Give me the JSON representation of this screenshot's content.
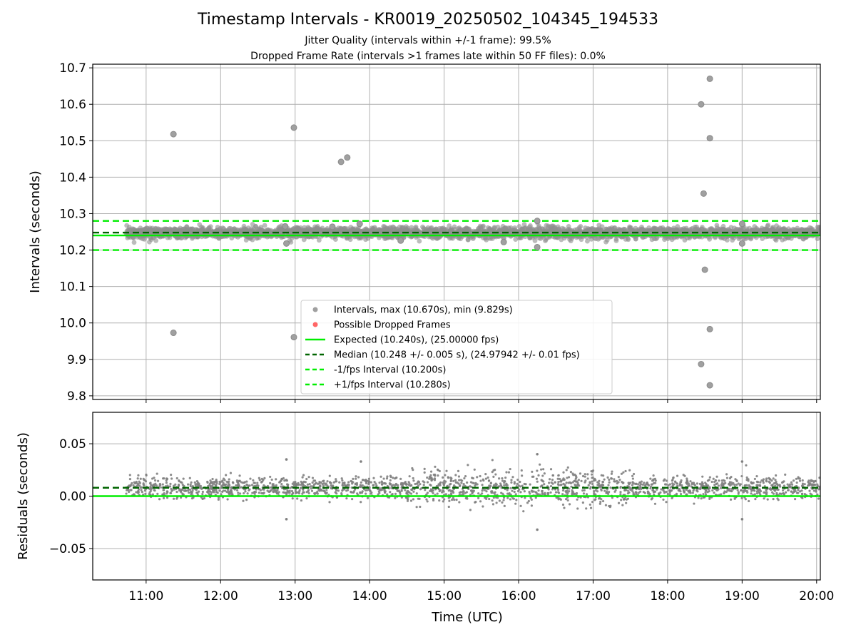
{
  "title": "Timestamp Intervals - KR0019_20250502_104345_194533",
  "subtitle_1": "Jitter Quality (intervals within +/-1 frame): 99.5%",
  "subtitle_2": "Dropped Frame Rate (intervals >1 frames late within 50 FF files): 0.0%",
  "colors": {
    "points": "#808080",
    "dropped": "#ff4d4d",
    "expected": "#00ee00",
    "median": "#006400",
    "fps_bounds": "#00ee00",
    "grid": "#b0b0b0"
  },
  "chart_data": [
    {
      "type": "scatter",
      "ylabel": "Intervals (seconds)",
      "xlabel": "",
      "xlim": [
        "10:17",
        "20:03"
      ],
      "ylim": [
        9.79,
        10.71
      ],
      "grid": true,
      "yticks": [
        "9.8",
        "9.9",
        "10.0",
        "10.1",
        "10.2",
        "10.3",
        "10.4",
        "10.5",
        "10.6",
        "10.7"
      ],
      "xticks": [
        "11:00",
        "12:00",
        "13:00",
        "14:00",
        "15:00",
        "16:00",
        "17:00",
        "18:00",
        "19:00",
        "20:00"
      ],
      "x_data_range": [
        "10:44",
        "20:03"
      ],
      "core_band": [
        10.232,
        10.262
      ],
      "outliers": [
        {
          "x": "11:22",
          "y": 10.518
        },
        {
          "x": "11:22",
          "y": 9.973
        },
        {
          "x": "12:52",
          "y": 10.265
        },
        {
          "x": "12:53",
          "y": 10.218
        },
        {
          "x": "12:59",
          "y": 10.536
        },
        {
          "x": "12:59",
          "y": 9.961
        },
        {
          "x": "13:30",
          "y": 10.264
        },
        {
          "x": "13:37",
          "y": 10.442
        },
        {
          "x": "13:42",
          "y": 10.454
        },
        {
          "x": "13:52",
          "y": 10.272
        },
        {
          "x": "14:25",
          "y": 10.226
        },
        {
          "x": "15:48",
          "y": 10.222
        },
        {
          "x": "16:15",
          "y": 10.28
        },
        {
          "x": "16:15",
          "y": 10.208
        },
        {
          "x": "18:27",
          "y": 10.6
        },
        {
          "x": "18:29",
          "y": 10.355
        },
        {
          "x": "18:30",
          "y": 10.146
        },
        {
          "x": "18:27",
          "y": 9.887
        },
        {
          "x": "18:34",
          "y": 10.67
        },
        {
          "x": "18:34",
          "y": 10.507
        },
        {
          "x": "18:34",
          "y": 9.983
        },
        {
          "x": "18:34",
          "y": 9.829
        },
        {
          "x": "19:00",
          "y": 10.272
        },
        {
          "x": "19:00",
          "y": 10.218
        }
      ],
      "lines": [
        {
          "name": "Expected (10.240s), (25.00000 fps)",
          "y": 10.24,
          "style": "solid",
          "color": "#00ee00"
        },
        {
          "name": "Median (10.248 +/- 0.005 s), (24.97942 +/- 0.01 fps)",
          "y": 10.248,
          "style": "dashed",
          "color": "#006400"
        },
        {
          "name": "-1/fps Interval (10.200s)",
          "y": 10.2,
          "style": "dashed",
          "color": "#00ee00"
        },
        {
          "name": "+1/fps Interval (10.280s)",
          "y": 10.28,
          "style": "dashed",
          "color": "#00ee00"
        }
      ],
      "legend": {
        "placement": "lower center",
        "entries": [
          {
            "label": "Intervals, max (10.670s), min (9.829s)",
            "kind": "dot",
            "color": "#a0a0a0"
          },
          {
            "label": "Possible Dropped Frames",
            "kind": "dot",
            "color": "#ff6666"
          },
          {
            "label": "Expected (10.240s), (25.00000 fps)",
            "kind": "solid",
            "color": "#00ee00"
          },
          {
            "label": "Median (10.248 +/- 0.005 s), (24.97942 +/- 0.01 fps)",
            "kind": "dashed",
            "color": "#006400"
          },
          {
            "label": "-1/fps Interval (10.200s)",
            "kind": "dashed",
            "color": "#00ee00"
          },
          {
            "label": "+1/fps Interval (10.280s)",
            "kind": "dashed",
            "color": "#00ee00"
          }
        ]
      }
    },
    {
      "type": "scatter",
      "ylabel": "Residuals (seconds)",
      "xlabel": "Time (UTC)",
      "xlim": [
        "10:17",
        "20:03"
      ],
      "ylim": [
        -0.08,
        0.08
      ],
      "grid": true,
      "yticks": [
        "−0.05",
        "0.00",
        "0.05"
      ],
      "ytick_values": [
        -0.05,
        0.0,
        0.05
      ],
      "xticks": [
        "11:00",
        "12:00",
        "13:00",
        "14:00",
        "15:00",
        "16:00",
        "17:00",
        "18:00",
        "19:00",
        "20:00"
      ],
      "core_band": [
        -0.002,
        0.018
      ],
      "outliers": [
        {
          "x": "12:53",
          "y": 0.035
        },
        {
          "x": "12:53",
          "y": -0.022
        },
        {
          "x": "13:53",
          "y": 0.033
        },
        {
          "x": "16:15",
          "y": 0.04
        },
        {
          "x": "16:15",
          "y": -0.032
        },
        {
          "x": "19:00",
          "y": 0.033
        },
        {
          "x": "19:00",
          "y": -0.022
        }
      ],
      "lines": [
        {
          "name": "Expected",
          "y": 0.0,
          "style": "solid",
          "color": "#00ee00"
        },
        {
          "name": "Median",
          "y": 0.008,
          "style": "dashed",
          "color": "#006400"
        }
      ]
    }
  ]
}
